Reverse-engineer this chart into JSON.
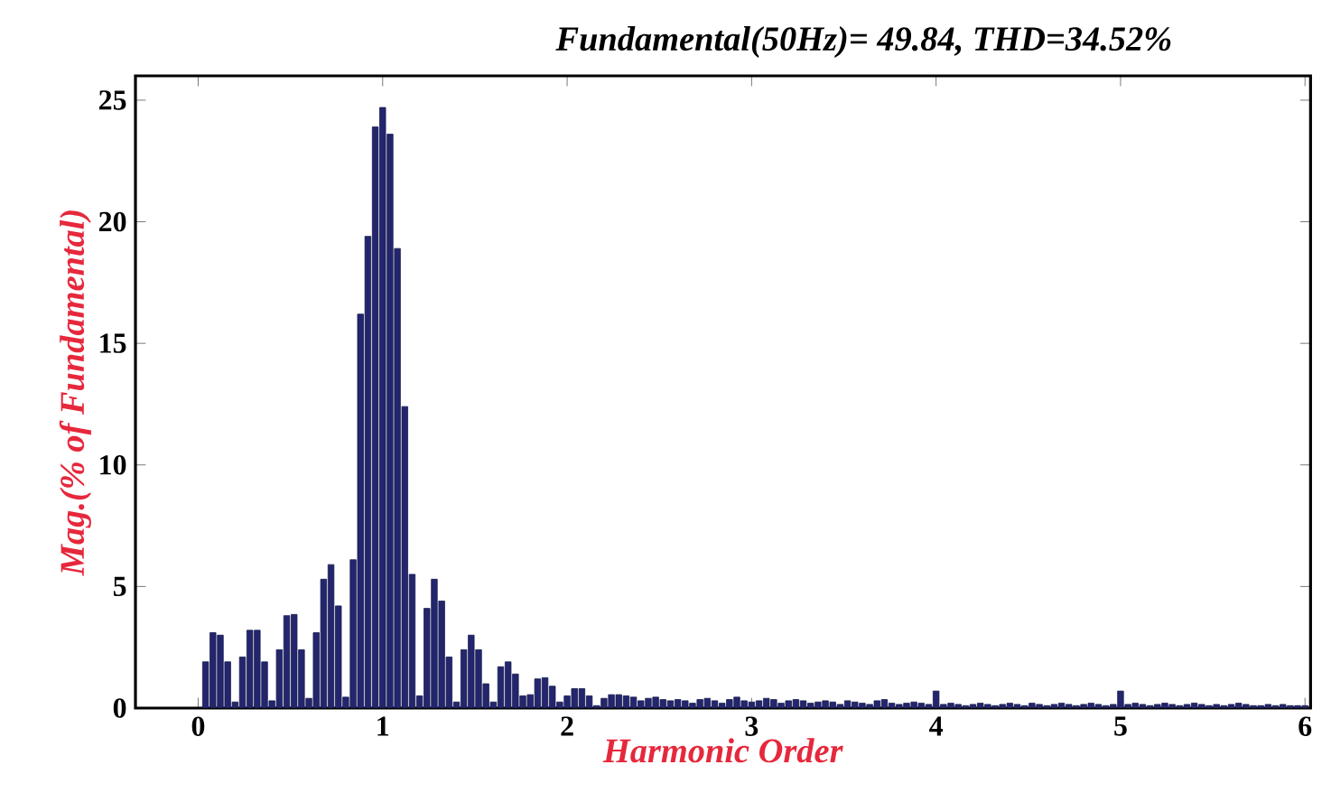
{
  "chart_data": {
    "type": "bar",
    "title": "Fundamental(50Hz)= 49.84, THD=34.52%",
    "xlabel": "Harmonic Order",
    "ylabel": "Mag.(% of Fundamental)",
    "color": "#23266e",
    "x": [
      0.04,
      0.08,
      0.12,
      0.16,
      0.2,
      0.24,
      0.28,
      0.32,
      0.36,
      0.4,
      0.44,
      0.48,
      0.52,
      0.56,
      0.6,
      0.64,
      0.68,
      0.72,
      0.76,
      0.8,
      0.84,
      0.88,
      0.92,
      0.96,
      1.0,
      1.04,
      1.08,
      1.12,
      1.16,
      1.2,
      1.24,
      1.28,
      1.32,
      1.36,
      1.4,
      1.44,
      1.48,
      1.52,
      1.56,
      1.6,
      1.64,
      1.68,
      1.72,
      1.76,
      1.8,
      1.84,
      1.88,
      1.92,
      1.96,
      2.0,
      2.04,
      2.08,
      2.12,
      2.16,
      2.2,
      2.24,
      2.28,
      2.32,
      2.36,
      2.4,
      2.44,
      2.48,
      2.52,
      2.56,
      2.6,
      2.64,
      2.68,
      2.72,
      2.76,
      2.8,
      2.84,
      2.88,
      2.92,
      2.96,
      3.0,
      3.04,
      3.08,
      3.12,
      3.16,
      3.2,
      3.24,
      3.28,
      3.32,
      3.36,
      3.4,
      3.44,
      3.48,
      3.52,
      3.56,
      3.6,
      3.64,
      3.68,
      3.72,
      3.76,
      3.8,
      3.84,
      3.88,
      3.92,
      3.96,
      4.0,
      4.04,
      4.08,
      4.12,
      4.16,
      4.2,
      4.24,
      4.28,
      4.32,
      4.36,
      4.4,
      4.44,
      4.48,
      4.52,
      4.56,
      4.6,
      4.64,
      4.68,
      4.72,
      4.76,
      4.8,
      4.84,
      4.88,
      4.92,
      4.96,
      5.0,
      5.04,
      5.08,
      5.12,
      5.16,
      5.2,
      5.24,
      5.28,
      5.32,
      5.36,
      5.4,
      5.44,
      5.48,
      5.52,
      5.56,
      5.6,
      5.64,
      5.68,
      5.72,
      5.76,
      5.8,
      5.84,
      5.88,
      5.92,
      5.96,
      6.0
    ],
    "values": [
      1.9,
      3.1,
      3.0,
      1.9,
      0.25,
      2.1,
      3.2,
      3.2,
      1.9,
      0.3,
      2.4,
      3.8,
      3.85,
      2.4,
      0.4,
      3.1,
      5.3,
      5.9,
      4.2,
      0.45,
      6.1,
      16.2,
      19.4,
      23.9,
      24.7,
      23.6,
      18.9,
      12.4,
      5.5,
      0.5,
      4.1,
      5.3,
      4.4,
      2.1,
      0.25,
      2.4,
      3.0,
      2.4,
      1.0,
      0.25,
      1.7,
      1.9,
      1.4,
      0.5,
      0.55,
      1.2,
      1.25,
      0.9,
      0.25,
      0.5,
      0.8,
      0.8,
      0.5,
      0.1,
      0.4,
      0.55,
      0.55,
      0.5,
      0.45,
      0.3,
      0.4,
      0.45,
      0.35,
      0.3,
      0.35,
      0.3,
      0.2,
      0.35,
      0.4,
      0.3,
      0.2,
      0.35,
      0.45,
      0.3,
      0.25,
      0.3,
      0.4,
      0.35,
      0.2,
      0.3,
      0.35,
      0.3,
      0.2,
      0.25,
      0.3,
      0.25,
      0.15,
      0.3,
      0.25,
      0.2,
      0.15,
      0.3,
      0.35,
      0.2,
      0.15,
      0.2,
      0.25,
      0.2,
      0.15,
      0.7,
      0.15,
      0.2,
      0.15,
      0.1,
      0.15,
      0.2,
      0.15,
      0.1,
      0.15,
      0.2,
      0.15,
      0.1,
      0.2,
      0.15,
      0.1,
      0.15,
      0.2,
      0.15,
      0.1,
      0.15,
      0.2,
      0.15,
      0.1,
      0.15,
      0.7,
      0.15,
      0.2,
      0.15,
      0.1,
      0.15,
      0.2,
      0.15,
      0.1,
      0.15,
      0.2,
      0.15,
      0.1,
      0.15,
      0.1,
      0.15,
      0.2,
      0.15,
      0.1,
      0.1,
      0.15,
      0.1,
      0.15,
      0.1,
      0.1,
      0.1
    ],
    "xlim": [
      -0.34,
      6.03
    ],
    "ylim": [
      0,
      26
    ],
    "xticks": [
      0,
      1,
      2,
      3,
      4,
      5,
      6
    ],
    "yticks": [
      0,
      5,
      10,
      15,
      20,
      25
    ]
  }
}
